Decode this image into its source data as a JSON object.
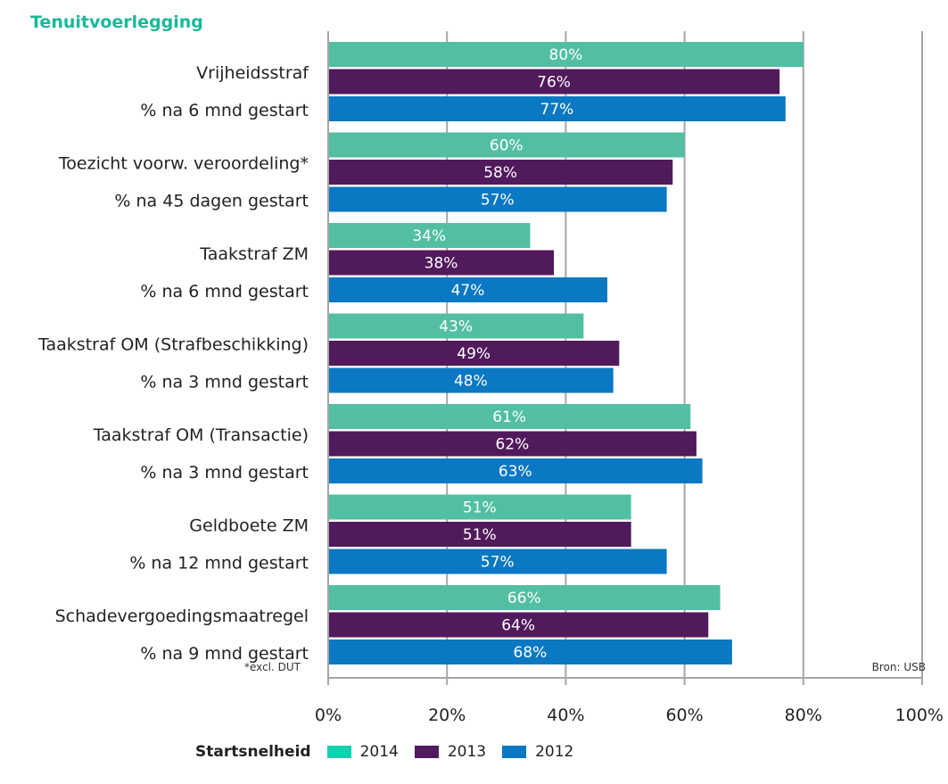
{
  "chart_data": {
    "type": "bar",
    "orientation": "horizontal",
    "title": "Tenuitvoerlegging",
    "categories": [
      [
        "Vrijheidsstraf",
        "% na 6 mnd gestart"
      ],
      [
        "Toezicht voorw. veroordeling*",
        "% na 45 dagen gestart"
      ],
      [
        "Taakstraf ZM",
        "% na 6 mnd gestart"
      ],
      [
        "Taakstraf OM (Strafbeschikking)",
        "% na 3 mnd gestart"
      ],
      [
        "Taakstraf OM (Transactie)",
        "% na 3 mnd gestart"
      ],
      [
        "Geldboete ZM",
        "% na 12 mnd gestart"
      ],
      [
        "Schadevergoedingsmaatregel",
        "% na 9 mnd gestart"
      ]
    ],
    "series": [
      {
        "name": "2014",
        "color": "#52bfa3",
        "values": [
          80,
          60,
          34,
          43,
          61,
          51,
          66
        ]
      },
      {
        "name": "2013",
        "color": "#511a5c",
        "values": [
          76,
          58,
          38,
          49,
          62,
          51,
          64
        ]
      },
      {
        "name": "2012",
        "color": "#0a78c2",
        "values": [
          77,
          57,
          47,
          48,
          63,
          57,
          68
        ]
      }
    ],
    "xlim": [
      0,
      100
    ],
    "xticks": [
      "0%",
      "20%",
      "40%",
      "60%",
      "80%",
      "100%"
    ],
    "xtick_values": [
      0,
      20,
      40,
      60,
      80,
      100
    ],
    "grid": true,
    "legend_title": "Startsnelheid",
    "legend_placement": "bottom",
    "legend_colors": [
      "#12d0b2",
      "#511a5c",
      "#0a78c2"
    ],
    "title_color": "#1ab89a",
    "footnote": "*excl. DUT",
    "source": "Bron: USB"
  }
}
